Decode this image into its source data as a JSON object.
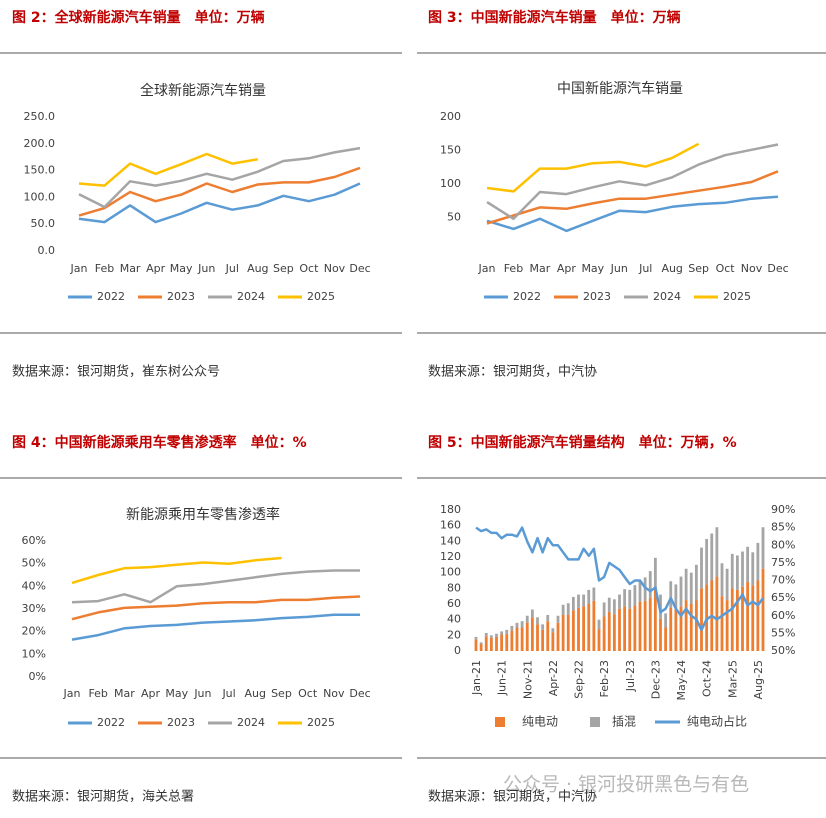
{
  "chart_data": [
    {
      "type": "line",
      "heading": "图 2：全球新能源汽车销量　单位：万辆",
      "title": "全球新能源汽车销量",
      "source": "数据来源：银河期货，崔东树公众号",
      "categories": [
        "Jan",
        "Feb",
        "Mar",
        "Apr",
        "May",
        "Jun",
        "Jul",
        "Aug",
        "Sep",
        "Oct",
        "Nov",
        "Dec"
      ],
      "ylim": [
        0,
        250
      ],
      "yticks": [
        {
          "value": 0,
          "label": "0.0"
        },
        {
          "value": 50,
          "label": "50.0"
        },
        {
          "value": 100,
          "label": "100.0"
        },
        {
          "value": 150,
          "label": "150.0"
        },
        {
          "value": 200,
          "label": "200.0"
        },
        {
          "value": 250,
          "label": "250.0"
        }
      ],
      "series": [
        {
          "name": "2022",
          "color": "#5b9bd5",
          "values": [
            60,
            54,
            85,
            54,
            70,
            90,
            77,
            85,
            103,
            93,
            105,
            126
          ]
        },
        {
          "name": "2023",
          "color": "#ed7d31",
          "values": [
            66,
            80,
            110,
            93,
            105,
            126,
            110,
            124,
            128,
            128,
            138,
            155
          ]
        },
        {
          "name": "2024",
          "color": "#a5a5a5",
          "values": [
            106,
            82,
            130,
            122,
            131,
            144,
            133,
            148,
            168,
            173,
            184,
            192
          ]
        },
        {
          "name": "2025",
          "color": "#ffc000",
          "values": [
            126,
            122,
            163,
            144,
            162,
            181,
            163,
            171,
            null,
            null,
            null,
            null
          ]
        }
      ]
    },
    {
      "type": "line",
      "heading": "图 3：中国新能源汽车销量　单位：万辆",
      "title": "中国新能源汽车销量",
      "source": "数据来源：银河期货，中汽协",
      "categories": [
        "Jan",
        "Feb",
        "Mar",
        "Apr",
        "May",
        "Jun",
        "Jul",
        "Aug",
        "Sep",
        "Oct",
        "Nov",
        "Dec"
      ],
      "ylim": [
        0,
        200
      ],
      "yticks": [
        50,
        100,
        150,
        200
      ],
      "series": [
        {
          "name": "2022",
          "color": "#5b9bd5",
          "values": [
            45,
            33,
            48,
            30,
            45,
            60,
            58,
            66,
            70,
            72,
            78,
            81
          ]
        },
        {
          "name": "2023",
          "color": "#ed7d31",
          "values": [
            41,
            53,
            65,
            63,
            71,
            78,
            78,
            84,
            90,
            96,
            103,
            119
          ]
        },
        {
          "name": "2024",
          "color": "#a5a5a5",
          "values": [
            73,
            48,
            88,
            85,
            95,
            104,
            98,
            110,
            129,
            143,
            151,
            159
          ]
        },
        {
          "name": "2025",
          "color": "#ffc000",
          "values": [
            94,
            89,
            123,
            123,
            131,
            133,
            126,
            139,
            160,
            null,
            null,
            null
          ]
        }
      ]
    },
    {
      "type": "line",
      "heading": "图 4：中国新能源乘用车零售渗透率　单位：%",
      "title": "新能源乘用车零售渗透率",
      "source": "数据来源：银河期货，海关总署",
      "categories": [
        "Jan",
        "Feb",
        "Mar",
        "Apr",
        "May",
        "Jun",
        "Jul",
        "Aug",
        "Sep",
        "Oct",
        "Nov",
        "Dec"
      ],
      "ylim": [
        0,
        60
      ],
      "yticks": [
        {
          "value": 0,
          "label": "0%"
        },
        {
          "value": 10,
          "label": "10%"
        },
        {
          "value": 20,
          "label": "20%"
        },
        {
          "value": 30,
          "label": "30%"
        },
        {
          "value": 40,
          "label": "40%"
        },
        {
          "value": 50,
          "label": "50%"
        },
        {
          "value": 60,
          "label": "60%"
        }
      ],
      "series": [
        {
          "name": "2022",
          "color": "#5b9bd5",
          "values": [
            16.5,
            18.5,
            21.5,
            22.5,
            23,
            24,
            24.5,
            25,
            26,
            26.5,
            27.5,
            27.5
          ]
        },
        {
          "name": "2023",
          "color": "#ed7d31",
          "values": [
            25.5,
            28.5,
            30.5,
            31,
            31.5,
            32.5,
            33,
            33,
            34,
            34,
            35,
            35.5
          ]
        },
        {
          "name": "2024",
          "color": "#a5a5a5",
          "values": [
            33,
            33.5,
            36.5,
            33,
            40,
            41,
            42.5,
            44,
            45.5,
            46.5,
            47,
            47
          ]
        },
        {
          "name": "2025",
          "color": "#ffc000",
          "values": [
            41.5,
            45,
            48,
            48.5,
            49.5,
            50.5,
            50,
            51.5,
            52.5,
            null,
            null,
            null
          ]
        }
      ]
    },
    {
      "type": "combo",
      "stacked": true,
      "heading": "图 5：中国新能源汽车销量结构　单位：万辆，%",
      "source": "数据来源：银河期货，中汽协",
      "categories": [
        "Jan-21",
        null,
        null,
        null,
        null,
        "Jun-21",
        null,
        null,
        null,
        null,
        "Nov-21",
        null,
        null,
        null,
        null,
        "Apr-22",
        null,
        null,
        null,
        null,
        "Sep-22",
        null,
        null,
        null,
        null,
        "Feb-23",
        null,
        null,
        null,
        null,
        "Jul-23",
        null,
        null,
        null,
        null,
        "Dec-23",
        null,
        null,
        null,
        null,
        "May-24",
        null,
        null,
        null,
        null,
        "Oct-24",
        null,
        null,
        null,
        null,
        "Mar-25",
        null,
        null,
        null,
        null,
        "Aug-25",
        null
      ],
      "ylim": [
        0,
        180
      ],
      "yticks": [
        0,
        20,
        40,
        60,
        80,
        100,
        120,
        140,
        160,
        180
      ],
      "y2lim": [
        50,
        90
      ],
      "y2ticks": [
        {
          "value": 50,
          "label": "50%"
        },
        {
          "value": 55,
          "label": "55%"
        },
        {
          "value": 60,
          "label": "60%"
        },
        {
          "value": 65,
          "label": "65%"
        },
        {
          "value": 70,
          "label": "70%"
        },
        {
          "value": 75,
          "label": "75%"
        },
        {
          "value": 80,
          "label": "80%"
        },
        {
          "value": 85,
          "label": "85%"
        },
        {
          "value": 90,
          "label": "90%"
        }
      ],
      "series": [
        {
          "name": "纯电动",
          "type": "bar",
          "color": "#ed7d31",
          "values": [
            15,
            9,
            19,
            17,
            18,
            21,
            22,
            26,
            30,
            30,
            36,
            43,
            34,
            27,
            38,
            24,
            36,
            46,
            46,
            52,
            55,
            57,
            60,
            64,
            28,
            44,
            50,
            47,
            54,
            57,
            54,
            58,
            63,
            64,
            68,
            79,
            41,
            30,
            55,
            53,
            57,
            65,
            60,
            65,
            80,
            85,
            90,
            95,
            70,
            65,
            80,
            78,
            82,
            88,
            84,
            90,
            105
          ]
        },
        {
          "name": "插混",
          "type": "bar",
          "color": "#a5a5a5",
          "values": [
            3,
            2,
            4,
            3,
            4,
            4,
            5,
            6,
            6,
            8,
            9,
            10,
            9,
            7,
            8,
            5,
            9,
            13,
            15,
            17,
            17,
            15,
            18,
            17,
            12,
            18,
            18,
            19,
            18,
            22,
            24,
            26,
            27,
            30,
            34,
            40,
            31,
            18,
            34,
            32,
            38,
            40,
            40,
            45,
            52,
            58,
            60,
            63,
            42,
            40,
            44,
            44,
            45,
            45,
            42,
            48,
            53
          ]
        },
        {
          "name": "纯电动占比",
          "type": "line",
          "axis": "y2",
          "color": "#5b9bd5",
          "values": [
            85,
            84,
            84.5,
            83.5,
            83.5,
            82,
            83,
            83,
            82.5,
            85,
            81,
            78,
            82,
            78,
            82,
            80,
            80,
            78,
            76,
            76,
            76,
            79,
            77,
            79,
            70,
            71,
            75,
            74,
            73,
            71,
            69,
            70,
            70,
            68,
            67,
            68,
            61,
            62,
            65,
            62,
            60,
            62,
            60,
            59,
            56,
            59,
            60,
            59,
            60,
            61,
            62,
            64,
            66,
            63,
            64,
            63,
            65
          ]
        }
      ]
    }
  ],
  "watermark": "公众号 · 银河投研黑色与有色"
}
